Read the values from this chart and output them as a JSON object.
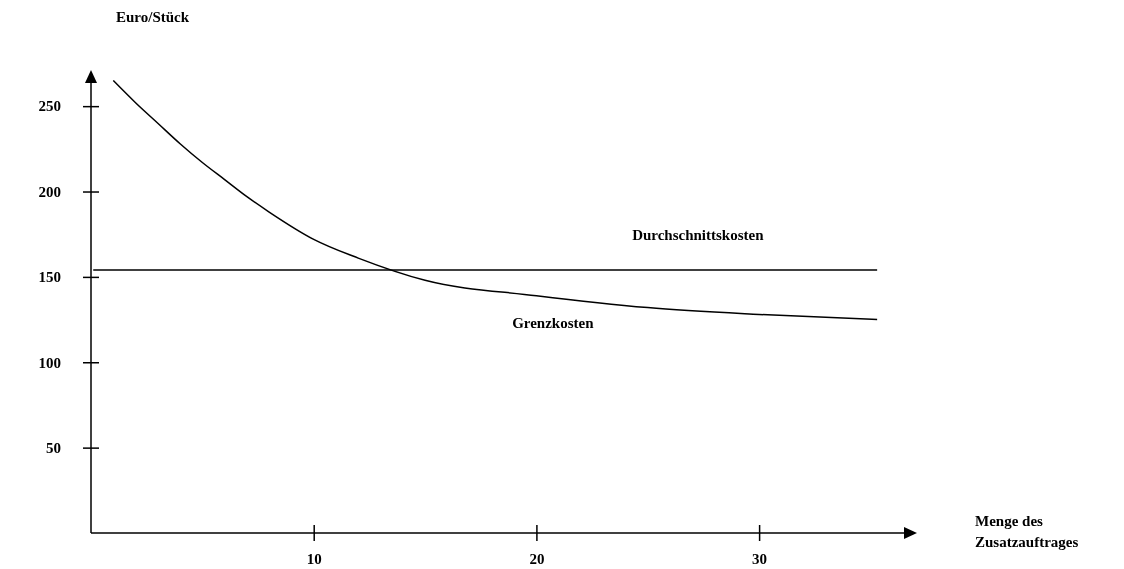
{
  "chart_data": {
    "type": "line",
    "xlabel": "Menge des Zusatzauftrages",
    "ylabel": "Euro/Stück",
    "xlim": [
      0,
      37
    ],
    "ylim": [
      0,
      270
    ],
    "xticks": [
      10,
      20,
      30
    ],
    "yticks": [
      50,
      100,
      150,
      200,
      250
    ],
    "grid": false,
    "legend": false,
    "marker": "none",
    "line_style": "solid",
    "series": [
      {
        "name": "Durchschnittskosten",
        "color": "#000000",
        "x": [
          0.1,
          35.3
        ],
        "values": [
          154,
          154
        ]
      },
      {
        "name": "Grenzkosten",
        "color": "#000000",
        "x": [
          1,
          2,
          3,
          4,
          5,
          6,
          7,
          8,
          10,
          12,
          15,
          20,
          25,
          30,
          35.3
        ],
        "values": [
          265,
          252,
          240,
          228,
          217,
          207,
          197,
          188,
          172,
          161,
          148,
          139,
          132,
          128,
          125
        ]
      }
    ]
  }
}
